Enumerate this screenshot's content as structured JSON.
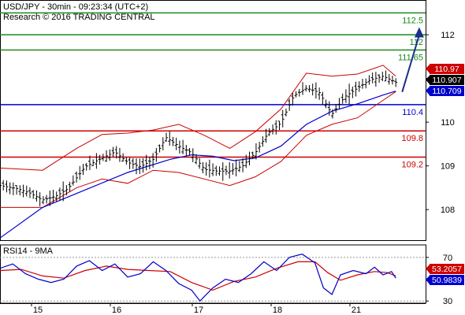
{
  "header": {
    "line1": "USD/JPY - 30min - 09:23:34 (UTC+2)",
    "line2": "Research © 2016 TRADING CENTRAL"
  },
  "colors": {
    "resistance": "#1a8a1a",
    "pivot": "#0000cc",
    "support": "#cc0000",
    "price": "#000000",
    "ma": "#0000cc",
    "bollinger": "#cc0000",
    "arrow": "#1a2f8a",
    "rsi": "#0000cc",
    "rsi_ma": "#cc0000"
  },
  "chart_data": [
    {
      "type": "candlestick",
      "instrument": "USD/JPY",
      "timeframe": "30min",
      "x_labels": [
        "15",
        "16",
        "17",
        "18",
        "21"
      ],
      "y_ticks": [
        108,
        109,
        110,
        111,
        112
      ],
      "ylim": [
        107.3,
        112.65
      ],
      "levels": [
        {
          "value": 112.5,
          "label": "112.5",
          "kind": "resistance"
        },
        {
          "value": 112.0,
          "label": "112",
          "kind": "resistance"
        },
        {
          "value": 111.65,
          "label": "111.65",
          "kind": "resistance"
        },
        {
          "value": 110.4,
          "label": "110.4",
          "kind": "pivot"
        },
        {
          "value": 109.8,
          "label": "109.8",
          "kind": "support"
        },
        {
          "value": 109.2,
          "label": "109.2",
          "kind": "support"
        }
      ],
      "price_boxes": [
        {
          "value": 110.97,
          "label": "110.97",
          "kind": "bollinger"
        },
        {
          "value": 110.907,
          "label": "110.907",
          "kind": "price"
        },
        {
          "value": 110.709,
          "label": "110.709",
          "kind": "ma"
        }
      ],
      "price_path": [
        [
          0,
          108.55
        ],
        [
          0.04,
          108.48
        ],
        [
          0.07,
          108.38
        ],
        [
          0.1,
          108.22
        ],
        [
          0.13,
          108.3
        ],
        [
          0.16,
          108.48
        ],
        [
          0.2,
          108.98
        ],
        [
          0.24,
          109.18
        ],
        [
          0.27,
          109.32
        ],
        [
          0.3,
          109.08
        ],
        [
          0.33,
          108.98
        ],
        [
          0.36,
          109.15
        ],
        [
          0.39,
          109.65
        ],
        [
          0.42,
          109.45
        ],
        [
          0.45,
          109.3
        ],
        [
          0.48,
          108.92
        ],
        [
          0.51,
          108.88
        ],
        [
          0.54,
          108.88
        ],
        [
          0.57,
          109.0
        ],
        [
          0.6,
          109.3
        ],
        [
          0.63,
          109.75
        ],
        [
          0.66,
          109.98
        ],
        [
          0.69,
          110.6
        ],
        [
          0.72,
          110.78
        ],
        [
          0.75,
          110.68
        ],
        [
          0.78,
          110.18
        ],
        [
          0.81,
          110.58
        ],
        [
          0.84,
          110.78
        ],
        [
          0.87,
          110.97
        ],
        [
          0.9,
          111.05
        ],
        [
          0.93,
          110.91
        ]
      ],
      "ma_path": [
        [
          0,
          107.35
        ],
        [
          0.1,
          108.05
        ],
        [
          0.2,
          108.45
        ],
        [
          0.3,
          108.85
        ],
        [
          0.4,
          109.15
        ],
        [
          0.45,
          109.25
        ],
        [
          0.5,
          109.22
        ],
        [
          0.55,
          109.12
        ],
        [
          0.6,
          109.18
        ],
        [
          0.66,
          109.45
        ],
        [
          0.72,
          109.95
        ],
        [
          0.78,
          110.25
        ],
        [
          0.84,
          110.42
        ],
        [
          0.9,
          110.62
        ],
        [
          0.93,
          110.71
        ]
      ],
      "bb_upper": [
        [
          0,
          108.95
        ],
        [
          0.1,
          108.9
        ],
        [
          0.18,
          109.4
        ],
        [
          0.24,
          109.72
        ],
        [
          0.3,
          109.75
        ],
        [
          0.36,
          109.82
        ],
        [
          0.42,
          109.95
        ],
        [
          0.48,
          109.7
        ],
        [
          0.54,
          109.4
        ],
        [
          0.6,
          109.78
        ],
        [
          0.66,
          110.3
        ],
        [
          0.72,
          111.12
        ],
        [
          0.78,
          111.05
        ],
        [
          0.84,
          111.1
        ],
        [
          0.9,
          111.3
        ],
        [
          0.93,
          111.05
        ]
      ],
      "bb_lower": [
        [
          0,
          108.05
        ],
        [
          0.1,
          108.05
        ],
        [
          0.18,
          108.5
        ],
        [
          0.24,
          108.7
        ],
        [
          0.3,
          108.6
        ],
        [
          0.36,
          108.9
        ],
        [
          0.42,
          108.85
        ],
        [
          0.48,
          108.7
        ],
        [
          0.54,
          108.55
        ],
        [
          0.6,
          108.75
        ],
        [
          0.66,
          109.1
        ],
        [
          0.72,
          109.7
        ],
        [
          0.78,
          109.95
        ],
        [
          0.84,
          110.1
        ],
        [
          0.9,
          110.5
        ],
        [
          0.93,
          110.7
        ]
      ],
      "forecast_arrow": {
        "from": [
          0.945,
          110.69
        ],
        "to": [
          0.985,
          112.1
        ]
      }
    },
    {
      "type": "line",
      "name": "RSI14 - 9MA",
      "label": "RSI14 - 9MA",
      "ylim": [
        28,
        80
      ],
      "y_ticks": [
        30,
        50,
        70
      ],
      "value_boxes": [
        {
          "value": 53.2057,
          "label": "53.2057",
          "kind": "rsi_ma"
        },
        {
          "value": 50.9839,
          "label": "50.9839",
          "kind": "rsi"
        }
      ],
      "rsi_path": [
        [
          0,
          60
        ],
        [
          0.03,
          64
        ],
        [
          0.06,
          55
        ],
        [
          0.09,
          50
        ],
        [
          0.12,
          47
        ],
        [
          0.15,
          50
        ],
        [
          0.18,
          62
        ],
        [
          0.21,
          67
        ],
        [
          0.24,
          58
        ],
        [
          0.27,
          64
        ],
        [
          0.3,
          52
        ],
        [
          0.33,
          55
        ],
        [
          0.36,
          66
        ],
        [
          0.39,
          58
        ],
        [
          0.42,
          46
        ],
        [
          0.45,
          40
        ],
        [
          0.47,
          30
        ],
        [
          0.5,
          42
        ],
        [
          0.53,
          50
        ],
        [
          0.56,
          47
        ],
        [
          0.59,
          55
        ],
        [
          0.62,
          66
        ],
        [
          0.65,
          58
        ],
        [
          0.68,
          70
        ],
        [
          0.71,
          73
        ],
        [
          0.74,
          65
        ],
        [
          0.76,
          42
        ],
        [
          0.78,
          36
        ],
        [
          0.8,
          54
        ],
        [
          0.83,
          58
        ],
        [
          0.86,
          55
        ],
        [
          0.88,
          61
        ],
        [
          0.9,
          54
        ],
        [
          0.92,
          57
        ],
        [
          0.93,
          51
        ]
      ],
      "rsi_ma_path": [
        [
          0,
          58
        ],
        [
          0.05,
          59
        ],
        [
          0.1,
          53
        ],
        [
          0.15,
          51
        ],
        [
          0.2,
          58
        ],
        [
          0.25,
          62
        ],
        [
          0.3,
          59
        ],
        [
          0.35,
          58
        ],
        [
          0.4,
          57
        ],
        [
          0.45,
          47
        ],
        [
          0.5,
          40
        ],
        [
          0.55,
          48
        ],
        [
          0.6,
          52
        ],
        [
          0.65,
          60
        ],
        [
          0.7,
          66
        ],
        [
          0.74,
          66
        ],
        [
          0.77,
          56
        ],
        [
          0.8,
          49
        ],
        [
          0.84,
          54
        ],
        [
          0.88,
          57
        ],
        [
          0.91,
          56
        ],
        [
          0.93,
          53
        ]
      ]
    }
  ]
}
